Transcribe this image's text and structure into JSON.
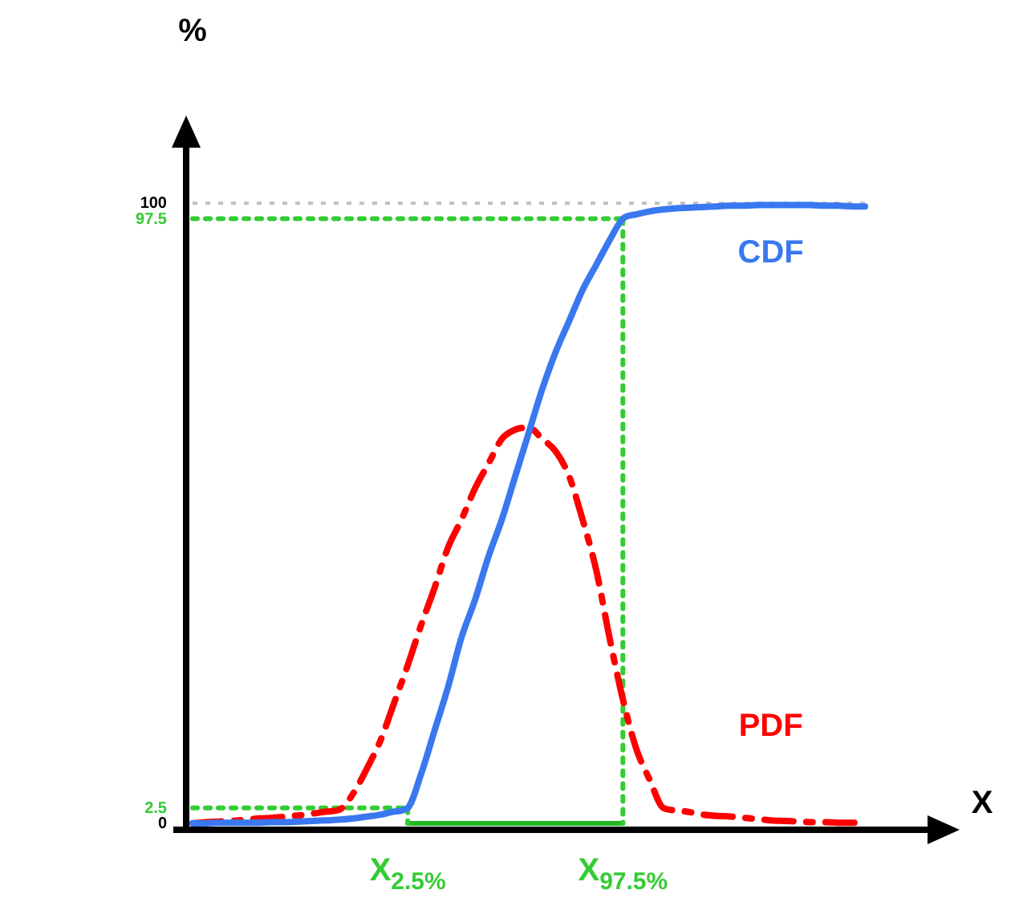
{
  "chart_data": {
    "type": "line",
    "xlabel": "X",
    "ylabel": "%",
    "grid": false,
    "legend": false,
    "marker": "none",
    "categories": [
      null,
      null,
      null,
      null,
      null,
      null,
      null,
      null,
      null,
      null,
      null,
      null,
      null,
      null,
      null,
      null,
      "X$_{2.5%}$",
      null,
      null,
      null,
      null,
      null,
      null,
      null,
      null,
      null,
      null,
      null,
      null,
      null,
      null,
      null,
      "X$_{97.5%}$",
      null,
      null,
      null,
      null,
      null,
      null,
      null,
      null,
      null,
      null,
      null,
      null,
      null,
      null,
      null,
      null,
      null,
      null
    ],
    "ylim": [
      0,
      110
    ],
    "yticks": [
      0,
      2.5,
      97.5,
      100
    ],
    "ref_lines": [
      {
        "axis": "y",
        "value": 100,
        "color": "#c0c0c0",
        "line_style": "dotted"
      }
    ],
    "series": [
      {
        "name": "CDF",
        "color": "#3a78f0",
        "line_style": "solid",
        "values": [
          0,
          0,
          0.1,
          0.1,
          0.1,
          0.1,
          0.2,
          0.2,
          0.3,
          0.4,
          0.5,
          0.6,
          0.8,
          1.1,
          1.4,
          1.9,
          2.5,
          8,
          15,
          22,
          30,
          36,
          43,
          49,
          56,
          63,
          70,
          76,
          81,
          86,
          90,
          94,
          97.5,
          98.2,
          98.7,
          99,
          99.2,
          99.3,
          99.4,
          99.5,
          99.6,
          99.6,
          99.7,
          99.7,
          99.7,
          99.7,
          99.7,
          99.6,
          99.6,
          99.5,
          99.5
        ]
      },
      {
        "name": "PDF",
        "color": "#ff0000",
        "line_style": "dashed",
        "values": [
          0,
          0.2,
          0.3,
          0.4,
          0.6,
          0.8,
          0.9,
          1.1,
          1.3,
          1.6,
          1.9,
          2.3,
          5,
          9,
          13.5,
          19.5,
          25.5,
          32,
          38,
          44.5,
          49,
          54,
          58,
          62,
          63.5,
          63.8,
          62,
          60,
          56,
          49,
          41,
          30,
          20,
          12,
          7,
          2.5,
          2.1,
          1.8,
          1.4,
          1.2,
          1.1,
          0.9,
          0.7,
          0.5,
          0.4,
          0.3,
          0.2,
          0.2,
          0.1,
          0.1,
          0.1
        ]
      },
      {
        "color": "#33cc33",
        "line_style": "dotted",
        "values": [
          2.5,
          2.5,
          2.5,
          2.5,
          2.5,
          2.5,
          2.5,
          2.5,
          2.5,
          2.5,
          2.5,
          2.5,
          2.5,
          2.5,
          2.5,
          2.5,
          2.5,
          null,
          null,
          null,
          null,
          null,
          null,
          null,
          null,
          null,
          null,
          null,
          null,
          null,
          null,
          null,
          null,
          null,
          null,
          null,
          null,
          null,
          null,
          null,
          null,
          null,
          null,
          null,
          null,
          null,
          null,
          null,
          null,
          null,
          null
        ]
      },
      {
        "color": "#33cc33",
        "line_style": "dotted",
        "values": [
          97.5,
          97.5,
          97.5,
          97.5,
          97.5,
          97.5,
          97.5,
          97.5,
          97.5,
          97.5,
          97.5,
          97.5,
          97.5,
          97.5,
          97.5,
          97.5,
          97.5,
          97.5,
          97.5,
          97.5,
          97.5,
          97.5,
          97.5,
          97.5,
          97.5,
          97.5,
          97.5,
          97.5,
          97.5,
          97.5,
          97.5,
          97.5,
          97.5,
          null,
          null,
          null,
          null,
          null,
          null,
          null,
          null,
          null,
          null,
          null,
          null,
          null,
          null,
          null,
          null,
          null,
          null
        ]
      },
      {
        "color": "#33cc33",
        "line_style": "dotted",
        "x": [
          "X$_{2.5%}$",
          "X$_{2.5%}$"
        ],
        "values": [
          2.5,
          0
        ]
      },
      {
        "color": "#33cc33",
        "line_style": "dotted",
        "x": [
          "X$_{97.5%}$",
          "X$_{97.5%}$"
        ],
        "values": [
          97.5,
          0
        ]
      },
      {
        "color": "#22b822",
        "line_style": "solid",
        "values": [
          null,
          null,
          null,
          null,
          null,
          null,
          null,
          null,
          null,
          null,
          null,
          null,
          null,
          null,
          null,
          null,
          0,
          0,
          0,
          0,
          0,
          0,
          0,
          0,
          0,
          0,
          0,
          0,
          0,
          0,
          0,
          0,
          0,
          null,
          null,
          null,
          null,
          null,
          null,
          null,
          null,
          null,
          null,
          null,
          null,
          null,
          null,
          null,
          null,
          null,
          null
        ]
      }
    ]
  }
}
